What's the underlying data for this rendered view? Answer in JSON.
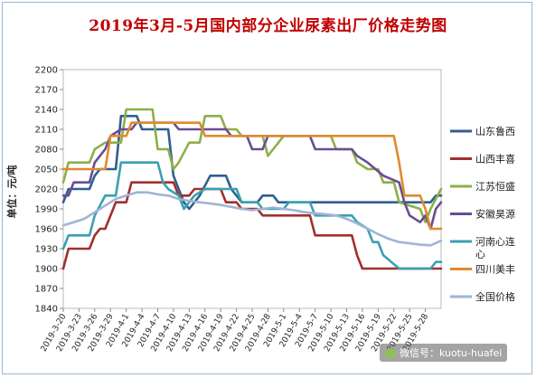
{
  "chart_data": {
    "type": "line",
    "title": "2019年3月-5月国内部分企业尿素出厂价格走势图",
    "ylabel": "单位：元/吨",
    "xlabel": "",
    "ylim": [
      1840,
      2200
    ],
    "yticks": [
      1840,
      1870,
      1900,
      1930,
      1960,
      1990,
      2020,
      2050,
      2080,
      2110,
      2140,
      2170,
      2200
    ],
    "categories": [
      "2019-3-20",
      "2019-3-23",
      "2019-3-26",
      "2019-3-29",
      "2019-4-1",
      "2019-4-4",
      "2019-4-7",
      "2019-4-10",
      "2019-4-13",
      "2019-4-16",
      "2019-4-19",
      "2019-4-22",
      "2019-4-25",
      "2019-4-28",
      "2019-5-1",
      "2019-5-4",
      "2019-5-7",
      "2019-5-10",
      "2019-5-13",
      "2019-5-16",
      "2019-5-19",
      "2019-5-22",
      "2019-5-25",
      "2019-5-28"
    ],
    "x_start": "2019-03-20",
    "x_end": "2019-05-31",
    "grid": false,
    "legend_position": "right",
    "series": [
      {
        "name": "山东鲁西",
        "color": "#2f5f8f",
        "points": [
          [
            "2019-03-20",
            2000
          ],
          [
            "2019-03-21",
            2020
          ],
          [
            "2019-03-25",
            2020
          ],
          [
            "2019-03-26",
            2040
          ],
          [
            "2019-03-27",
            2050
          ],
          [
            "2019-03-30",
            2050
          ],
          [
            "2019-03-31",
            2130
          ],
          [
            "2019-04-03",
            2130
          ],
          [
            "2019-04-04",
            2110
          ],
          [
            "2019-04-09",
            2110
          ],
          [
            "2019-04-10",
            2040
          ],
          [
            "2019-04-12",
            2000
          ],
          [
            "2019-04-13",
            1990
          ],
          [
            "2019-04-15",
            2010
          ],
          [
            "2019-04-17",
            2040
          ],
          [
            "2019-04-20",
            2040
          ],
          [
            "2019-04-21",
            2020
          ],
          [
            "2019-04-23",
            2000
          ],
          [
            "2019-04-26",
            2000
          ],
          [
            "2019-04-27",
            2010
          ],
          [
            "2019-04-29",
            2010
          ],
          [
            "2019-04-30",
            2000
          ],
          [
            "2019-05-29",
            2000
          ],
          [
            "2019-05-30",
            2010
          ],
          [
            "2019-05-31",
            2010
          ]
        ]
      },
      {
        "name": "山西丰喜",
        "color": "#a0302e",
        "points": [
          [
            "2019-03-20",
            1900
          ],
          [
            "2019-03-21",
            1930
          ],
          [
            "2019-03-25",
            1930
          ],
          [
            "2019-03-26",
            1950
          ],
          [
            "2019-03-27",
            1960
          ],
          [
            "2019-03-28",
            1960
          ],
          [
            "2019-03-30",
            2000
          ],
          [
            "2019-04-01",
            2000
          ],
          [
            "2019-04-02",
            2030
          ],
          [
            "2019-04-10",
            2030
          ],
          [
            "2019-04-11",
            2010
          ],
          [
            "2019-04-13",
            2010
          ],
          [
            "2019-04-14",
            2020
          ],
          [
            "2019-04-19",
            2020
          ],
          [
            "2019-04-20",
            2000
          ],
          [
            "2019-04-22",
            2000
          ],
          [
            "2019-04-23",
            1990
          ],
          [
            "2019-04-26",
            1990
          ],
          [
            "2019-04-27",
            1980
          ],
          [
            "2019-05-06",
            1980
          ],
          [
            "2019-05-07",
            1950
          ],
          [
            "2019-05-14",
            1950
          ],
          [
            "2019-05-15",
            1920
          ],
          [
            "2019-05-16",
            1900
          ],
          [
            "2019-05-31",
            1900
          ]
        ]
      },
      {
        "name": "江苏恒盛",
        "color": "#8bb04b",
        "points": [
          [
            "2019-03-20",
            2030
          ],
          [
            "2019-03-21",
            2060
          ],
          [
            "2019-03-25",
            2060
          ],
          [
            "2019-03-26",
            2080
          ],
          [
            "2019-03-28",
            2090
          ],
          [
            "2019-03-31",
            2090
          ],
          [
            "2019-04-01",
            2140
          ],
          [
            "2019-04-04",
            2140
          ],
          [
            "2019-04-06",
            2140
          ],
          [
            "2019-04-07",
            2080
          ],
          [
            "2019-04-09",
            2080
          ],
          [
            "2019-04-10",
            2050
          ],
          [
            "2019-04-11",
            2060
          ],
          [
            "2019-04-13",
            2090
          ],
          [
            "2019-04-15",
            2090
          ],
          [
            "2019-04-16",
            2130
          ],
          [
            "2019-04-19",
            2130
          ],
          [
            "2019-04-20",
            2110
          ],
          [
            "2019-04-22",
            2110
          ],
          [
            "2019-04-23",
            2100
          ],
          [
            "2019-04-27",
            2100
          ],
          [
            "2019-04-28",
            2070
          ],
          [
            "2019-04-29",
            2080
          ],
          [
            "2019-04-30",
            2090
          ],
          [
            "2019-05-01",
            2100
          ],
          [
            "2019-05-10",
            2100
          ],
          [
            "2019-05-11",
            2080
          ],
          [
            "2019-05-14",
            2080
          ],
          [
            "2019-05-15",
            2060
          ],
          [
            "2019-05-17",
            2050
          ],
          [
            "2019-05-19",
            2050
          ],
          [
            "2019-05-20",
            2030
          ],
          [
            "2019-05-22",
            2030
          ],
          [
            "2019-05-23",
            2000
          ],
          [
            "2019-05-27",
            1990
          ],
          [
            "2019-05-28",
            1970
          ],
          [
            "2019-05-29",
            1990
          ],
          [
            "2019-05-31",
            2020
          ]
        ]
      },
      {
        "name": "安徽昊源",
        "color": "#6a4c93",
        "points": [
          [
            "2019-03-20",
            2010
          ],
          [
            "2019-03-21",
            2010
          ],
          [
            "2019-03-22",
            2030
          ],
          [
            "2019-03-25",
            2030
          ],
          [
            "2019-03-26",
            2060
          ],
          [
            "2019-03-28",
            2080
          ],
          [
            "2019-03-29",
            2100
          ],
          [
            "2019-03-31",
            2110
          ],
          [
            "2019-04-02",
            2110
          ],
          [
            "2019-04-03",
            2120
          ],
          [
            "2019-04-10",
            2120
          ],
          [
            "2019-04-11",
            2110
          ],
          [
            "2019-04-20",
            2110
          ],
          [
            "2019-04-21",
            2100
          ],
          [
            "2019-04-24",
            2100
          ],
          [
            "2019-04-25",
            2080
          ],
          [
            "2019-04-27",
            2080
          ],
          [
            "2019-04-28",
            2100
          ],
          [
            "2019-05-06",
            2100
          ],
          [
            "2019-05-07",
            2080
          ],
          [
            "2019-05-14",
            2080
          ],
          [
            "2019-05-15",
            2070
          ],
          [
            "2019-05-17",
            2060
          ],
          [
            "2019-05-20",
            2040
          ],
          [
            "2019-05-23",
            2030
          ],
          [
            "2019-05-24",
            2000
          ],
          [
            "2019-05-25",
            1980
          ],
          [
            "2019-05-27",
            1970
          ],
          [
            "2019-05-28",
            1980
          ],
          [
            "2019-05-29",
            1960
          ],
          [
            "2019-05-30",
            1990
          ],
          [
            "2019-05-31",
            2000
          ]
        ]
      },
      {
        "name": "河南心连心",
        "color": "#3aa0b0",
        "points": [
          [
            "2019-03-20",
            1930
          ],
          [
            "2019-03-21",
            1950
          ],
          [
            "2019-03-25",
            1950
          ],
          [
            "2019-03-26",
            1980
          ],
          [
            "2019-03-28",
            2010
          ],
          [
            "2019-03-30",
            2010
          ],
          [
            "2019-03-31",
            2060
          ],
          [
            "2019-04-07",
            2060
          ],
          [
            "2019-04-08",
            2030
          ],
          [
            "2019-04-09",
            2020
          ],
          [
            "2019-04-11",
            2010
          ],
          [
            "2019-04-12",
            1990
          ],
          [
            "2019-04-13",
            2000
          ],
          [
            "2019-04-14",
            2010
          ],
          [
            "2019-04-16",
            2020
          ],
          [
            "2019-04-22",
            2020
          ],
          [
            "2019-04-23",
            2000
          ],
          [
            "2019-04-26",
            2000
          ],
          [
            "2019-04-27",
            1990
          ],
          [
            "2019-05-01",
            1990
          ],
          [
            "2019-05-02",
            2000
          ],
          [
            "2019-05-06",
            2000
          ],
          [
            "2019-05-07",
            1980
          ],
          [
            "2019-05-14",
            1980
          ],
          [
            "2019-05-15",
            1970
          ],
          [
            "2019-05-17",
            1960
          ],
          [
            "2019-05-18",
            1940
          ],
          [
            "2019-05-19",
            1940
          ],
          [
            "2019-05-20",
            1920
          ],
          [
            "2019-05-23",
            1900
          ],
          [
            "2019-05-29",
            1900
          ],
          [
            "2019-05-30",
            1910
          ],
          [
            "2019-05-31",
            1910
          ]
        ]
      },
      {
        "name": "四川美丰",
        "color": "#e08a2e",
        "points": [
          [
            "2019-03-20",
            2050
          ],
          [
            "2019-03-28",
            2050
          ],
          [
            "2019-03-29",
            2100
          ],
          [
            "2019-04-01",
            2100
          ],
          [
            "2019-04-02",
            2120
          ],
          [
            "2019-04-15",
            2120
          ],
          [
            "2019-04-16",
            2100
          ],
          [
            "2019-05-22",
            2100
          ],
          [
            "2019-05-23",
            2060
          ],
          [
            "2019-05-24",
            2010
          ],
          [
            "2019-05-27",
            2010
          ],
          [
            "2019-05-28",
            1990
          ],
          [
            "2019-05-29",
            1960
          ],
          [
            "2019-05-31",
            1960
          ]
        ]
      },
      {
        "name": "全国价格",
        "color": "#9fb4d6",
        "points": [
          [
            "2019-03-20",
            1965
          ],
          [
            "2019-03-22",
            1970
          ],
          [
            "2019-03-24",
            1975
          ],
          [
            "2019-03-26",
            1985
          ],
          [
            "2019-03-28",
            1995
          ],
          [
            "2019-03-30",
            2005
          ],
          [
            "2019-04-01",
            2010
          ],
          [
            "2019-04-03",
            2015
          ],
          [
            "2019-04-05",
            2015
          ],
          [
            "2019-04-07",
            2012
          ],
          [
            "2019-04-09",
            2010
          ],
          [
            "2019-04-11",
            2005
          ],
          [
            "2019-04-13",
            2002
          ],
          [
            "2019-04-15",
            2000
          ],
          [
            "2019-04-17",
            1998
          ],
          [
            "2019-04-19",
            1996
          ],
          [
            "2019-04-21",
            1993
          ],
          [
            "2019-04-23",
            1990
          ],
          [
            "2019-04-25",
            1988
          ],
          [
            "2019-04-27",
            1990
          ],
          [
            "2019-04-29",
            1992
          ],
          [
            "2019-05-01",
            1990
          ],
          [
            "2019-05-03",
            1988
          ],
          [
            "2019-05-05",
            1985
          ],
          [
            "2019-05-07",
            1983
          ],
          [
            "2019-05-09",
            1982
          ],
          [
            "2019-05-11",
            1980
          ],
          [
            "2019-05-13",
            1975
          ],
          [
            "2019-05-15",
            1968
          ],
          [
            "2019-05-17",
            1960
          ],
          [
            "2019-05-19",
            1952
          ],
          [
            "2019-05-21",
            1945
          ],
          [
            "2019-05-23",
            1940
          ],
          [
            "2019-05-25",
            1938
          ],
          [
            "2019-05-27",
            1936
          ],
          [
            "2019-05-29",
            1935
          ],
          [
            "2019-05-31",
            1942
          ]
        ]
      }
    ]
  },
  "watermark": {
    "text": "微信号：kuotu-huafei",
    "icon": "wechat-icon"
  }
}
